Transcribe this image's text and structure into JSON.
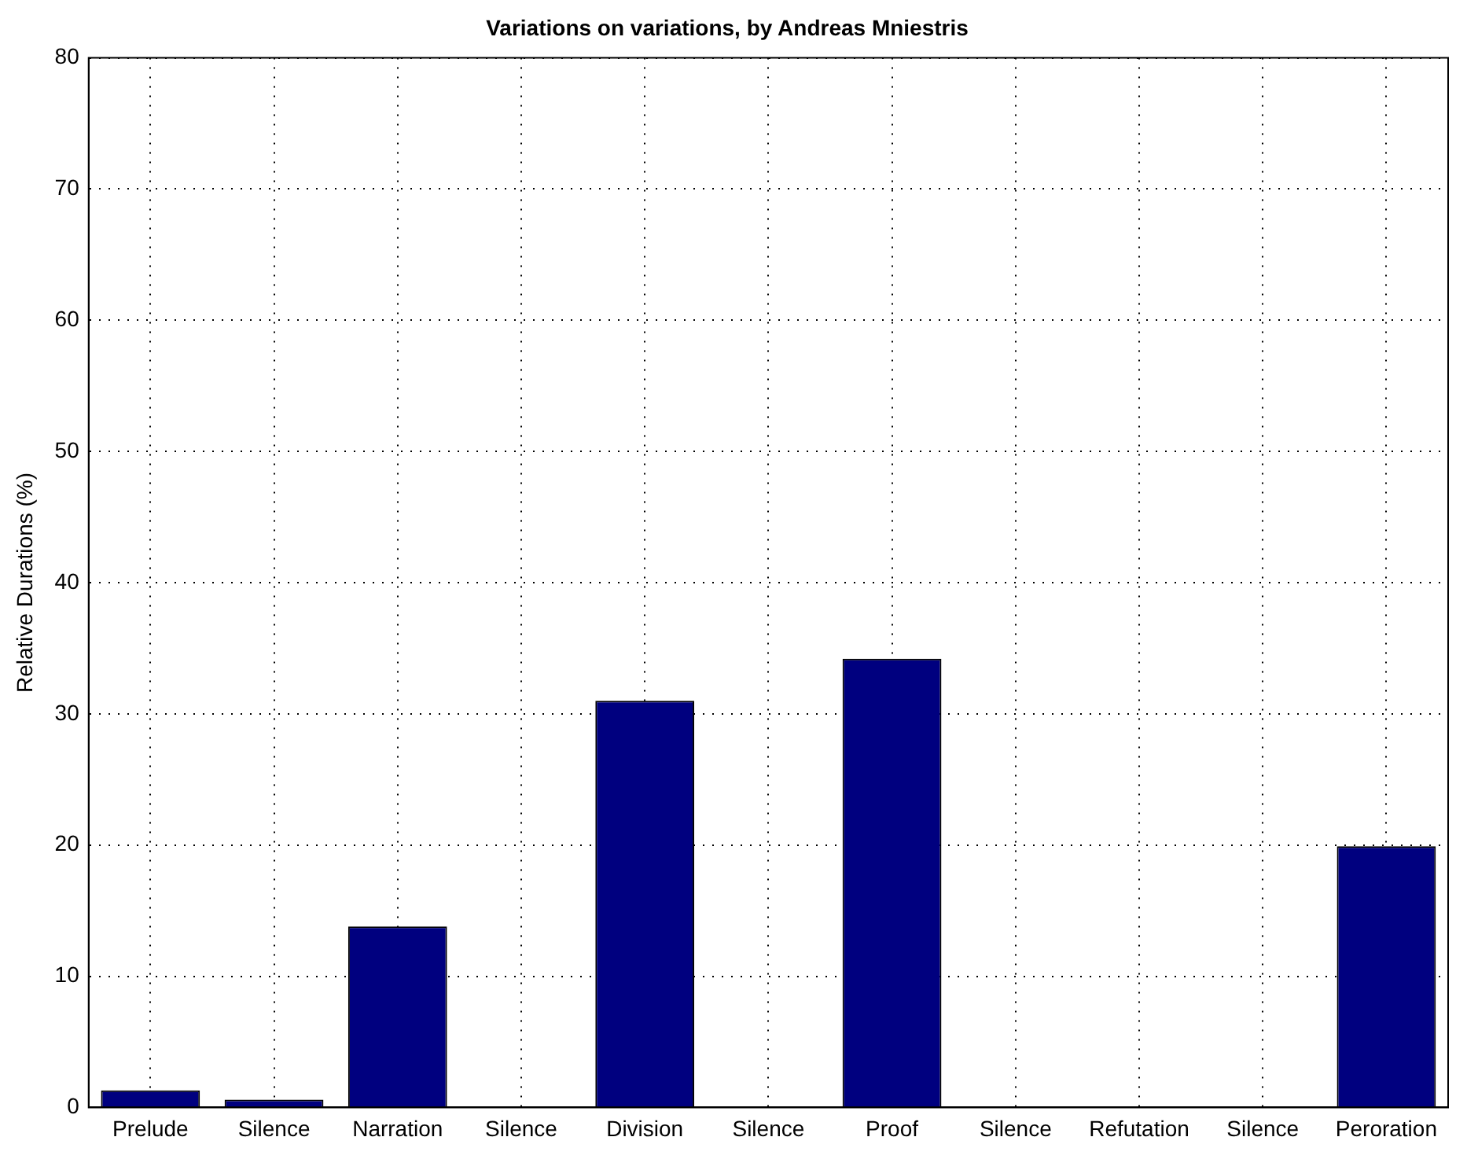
{
  "chart_data": {
    "type": "bar",
    "title": "Variations on variations, by Andreas Mniestris",
    "ylabel": "Relative Durations (%)",
    "categories": [
      "Prelude",
      "Silence",
      "Narration",
      "Silence",
      "Division",
      "Silence",
      "Proof",
      "Silence",
      "Refutation",
      "Silence",
      "Peroration"
    ],
    "values": [
      1.3,
      0.6,
      13.8,
      0,
      31.0,
      0,
      34.2,
      0,
      0,
      0,
      19.9
    ],
    "color": "#00007f",
    "ylim": [
      0,
      80
    ],
    "yticks": [
      0,
      10,
      20,
      30,
      40,
      50,
      60,
      70,
      80
    ],
    "grid": true
  }
}
